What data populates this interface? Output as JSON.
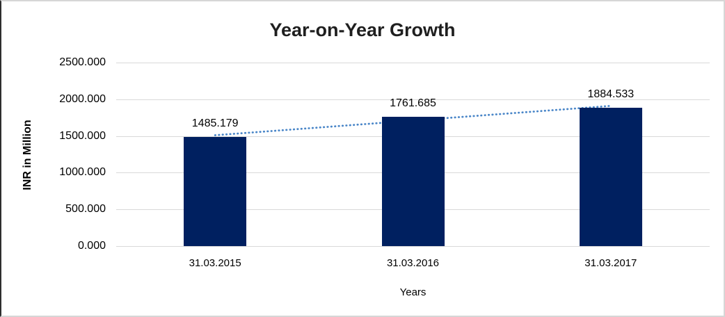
{
  "chart_data": {
    "type": "bar",
    "title": "Year-on-Year Growth",
    "categories": [
      "31.03.2015",
      "31.03.2016",
      "31.03.2017"
    ],
    "values": [
      1485.179,
      1761.685,
      1884.533
    ],
    "data_labels": [
      "1485.179",
      "1761.685",
      "1884.533"
    ],
    "xlabel": "Years",
    "ylabel": "INR in Million",
    "y_ticks": [
      "2500.000",
      "2000.000",
      "1500.000",
      "1000.000",
      "500.000",
      "0.000"
    ],
    "ylim": [
      0,
      2500
    ],
    "grid": "horizontal",
    "legend": "none",
    "bar_color": "#002060",
    "gridline_color": "#d9d9d9",
    "trendline": {
      "type": "linear",
      "style": "dotted",
      "color": "#4a86c8"
    }
  }
}
